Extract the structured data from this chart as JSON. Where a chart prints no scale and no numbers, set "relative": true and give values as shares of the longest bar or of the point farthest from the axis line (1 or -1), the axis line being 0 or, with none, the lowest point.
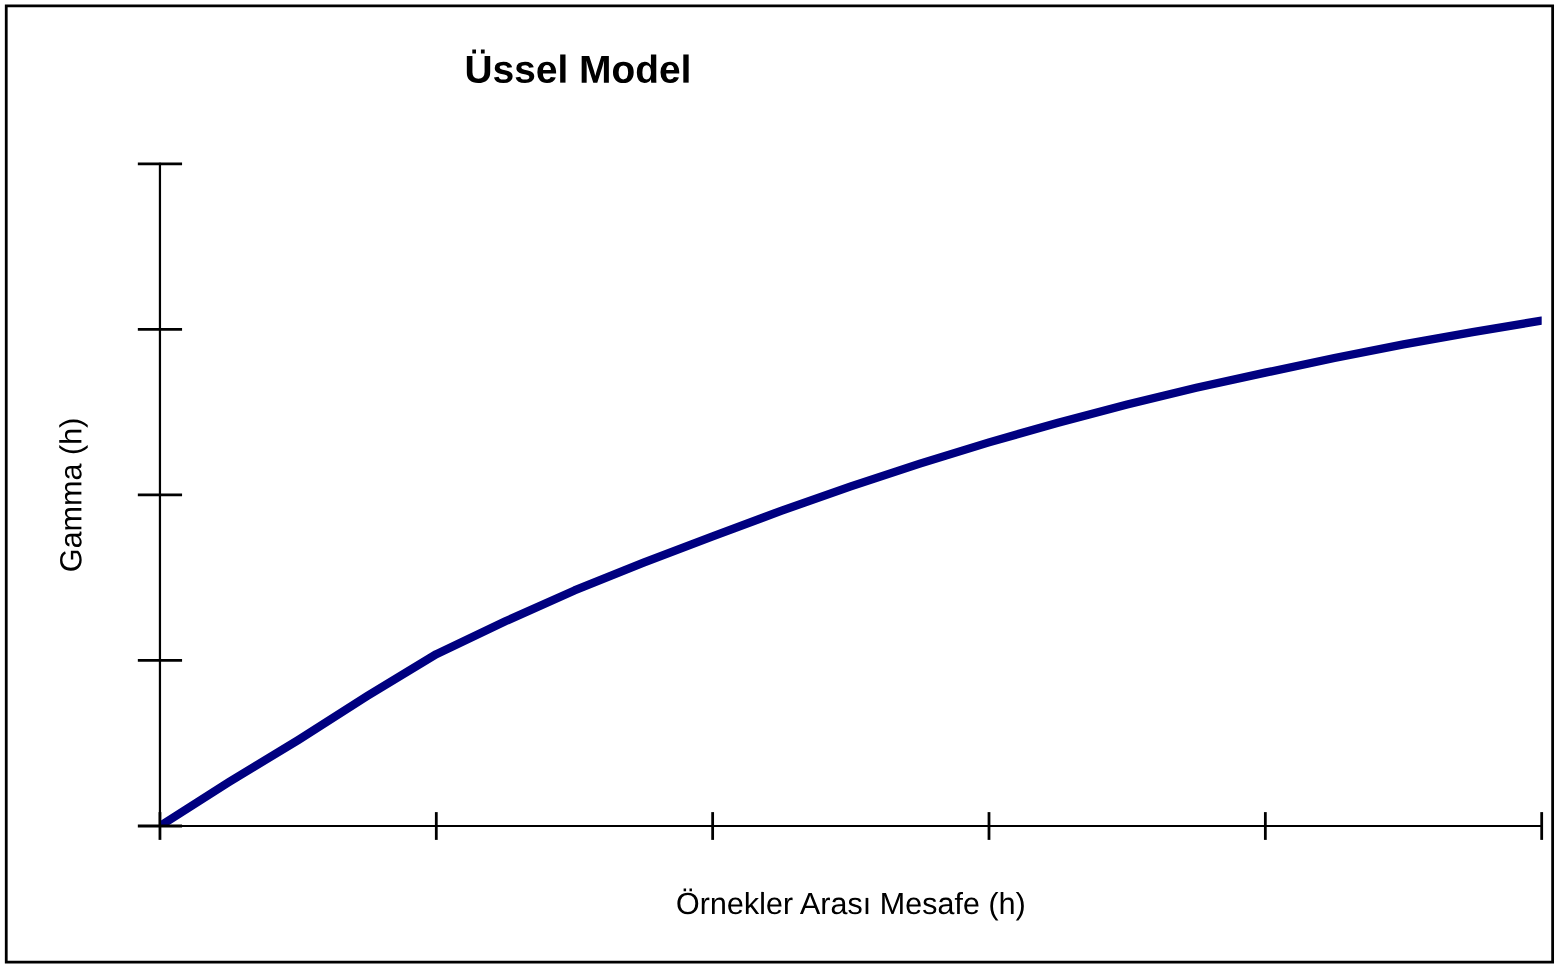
{
  "chart_data": {
    "type": "line",
    "title": "Üssel Model",
    "xlabel": "Örnekler Arası Mesafe (h)",
    "ylabel": "Gamma (h)",
    "relative": true,
    "categories": [
      null,
      null,
      null,
      null,
      null,
      null,
      null,
      null,
      null,
      null,
      null,
      null,
      null,
      null,
      null,
      null,
      null,
      null,
      null,
      null,
      null
    ],
    "series": [
      {
        "color": "#000080",
        "values": [
          0,
          0.087,
          0.17,
          0.257,
          0.34,
          0.405,
          0.466,
          0.521,
          0.573,
          0.624,
          0.672,
          0.717,
          0.759,
          0.798,
          0.834,
          0.867,
          0.897,
          0.926,
          0.953,
          0.977,
          1
        ]
      }
    ],
    "grid": false,
    "marker": "none",
    "line_style": "solid"
  }
}
